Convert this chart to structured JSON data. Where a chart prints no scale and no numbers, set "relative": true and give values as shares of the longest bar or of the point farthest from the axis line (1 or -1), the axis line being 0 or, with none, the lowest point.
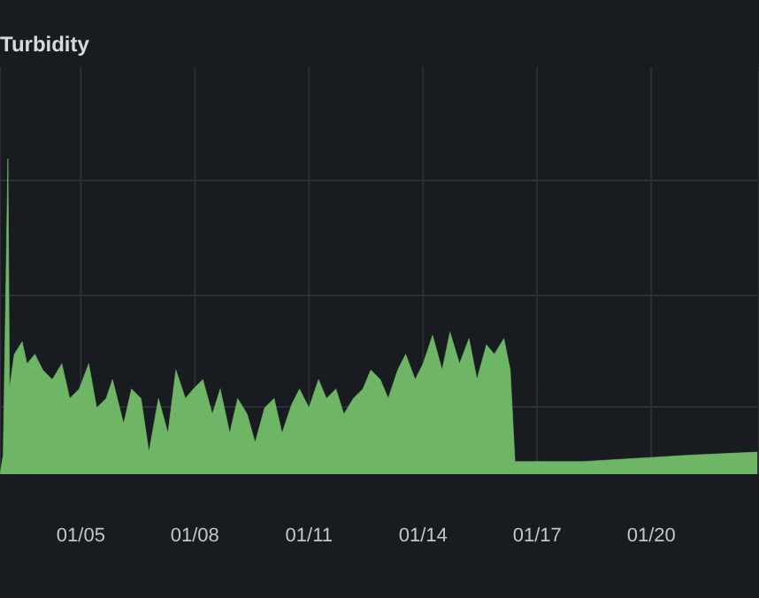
{
  "chart_data": {
    "type": "area",
    "title": "Turbidity",
    "relative": true,
    "grid": true,
    "xlim": [
      "--01-02T21:00",
      "--01-22T20:00"
    ],
    "xticks": [
      {
        "value": "--01-05",
        "label": "01/05"
      },
      {
        "value": "--01-08",
        "label": "01/08"
      },
      {
        "value": "--01-11",
        "label": "01/11"
      },
      {
        "value": "--01-14",
        "label": "01/14"
      },
      {
        "value": "--01-17",
        "label": "01/17"
      },
      {
        "value": "--01-20",
        "label": "01/20"
      }
    ],
    "x": [
      "--01-02T21:00",
      "--01-02T23:00",
      "--01-03T02:00",
      "--01-03T03:00",
      "--01-03T06:00",
      "--01-03T11:00",
      "--01-03T14:00",
      "--01-03T19:00",
      "--01-04T00:00",
      "--01-04T06:00",
      "--01-04T12:00",
      "--01-04T17:00",
      "--01-04T23:00",
      "--01-05T05:00",
      "--01-05T10:00",
      "--01-05T16:00",
      "--01-05T20:00",
      "--01-06T03:00",
      "--01-06T08:00",
      "--01-06T14:00",
      "--01-06T19:00",
      "--01-07T01:00",
      "--01-07T07:00",
      "--01-07T12:00",
      "--01-07T18:00",
      "--01-07T23:00",
      "--01-08T05:00",
      "--01-08T11:00",
      "--01-08T16:00",
      "--01-08T22:00",
      "--01-09T03:00",
      "--01-09T09:00",
      "--01-09T14:00",
      "--01-09T20:00",
      "--01-10T02:00",
      "--01-10T07:00",
      "--01-10T13:00",
      "--01-10T18:00",
      "--01-11T00:00",
      "--01-11T06:00",
      "--01-11T11:00",
      "--01-11T17:00",
      "--01-11T22:00",
      "--01-12T04:00",
      "--01-12T10:00",
      "--01-12T15:00",
      "--01-12T21:00",
      "--01-13T02:00",
      "--01-13T08:00",
      "--01-13T13:00",
      "--01-13T19:00",
      "--01-14T00:00",
      "--01-14T06:00",
      "--01-14T12:00",
      "--01-14T17:00",
      "--01-14T23:00",
      "--01-15T05:00",
      "--01-15T10:00",
      "--01-15T16:00",
      "--01-15T21:00",
      "--01-16T03:00",
      "--01-16T07:00",
      "--01-16T10:00",
      "--01-16T19:00",
      "--01-18T05:00",
      "--01-19T14:00",
      "--01-21T00:00",
      "--01-22T19:00"
    ],
    "series": [
      {
        "color": "#73bf69",
        "values": [
          0,
          0.06,
          1.0,
          0.27,
          0.38,
          0.42,
          0.35,
          0.38,
          0.33,
          0.3,
          0.35,
          0.24,
          0.27,
          0.35,
          0.21,
          0.24,
          0.3,
          0.16,
          0.27,
          0.24,
          0.07,
          0.24,
          0.13,
          0.33,
          0.24,
          0.27,
          0.3,
          0.19,
          0.27,
          0.13,
          0.24,
          0.19,
          0.1,
          0.21,
          0.24,
          0.13,
          0.22,
          0.27,
          0.21,
          0.3,
          0.24,
          0.27,
          0.19,
          0.24,
          0.27,
          0.33,
          0.3,
          0.24,
          0.33,
          0.38,
          0.3,
          0.35,
          0.44,
          0.33,
          0.45,
          0.35,
          0.43,
          0.3,
          0.41,
          0.38,
          0.43,
          0.33,
          0.04,
          0.04,
          0.04,
          0.05,
          0.06,
          0.07
        ]
      }
    ]
  }
}
